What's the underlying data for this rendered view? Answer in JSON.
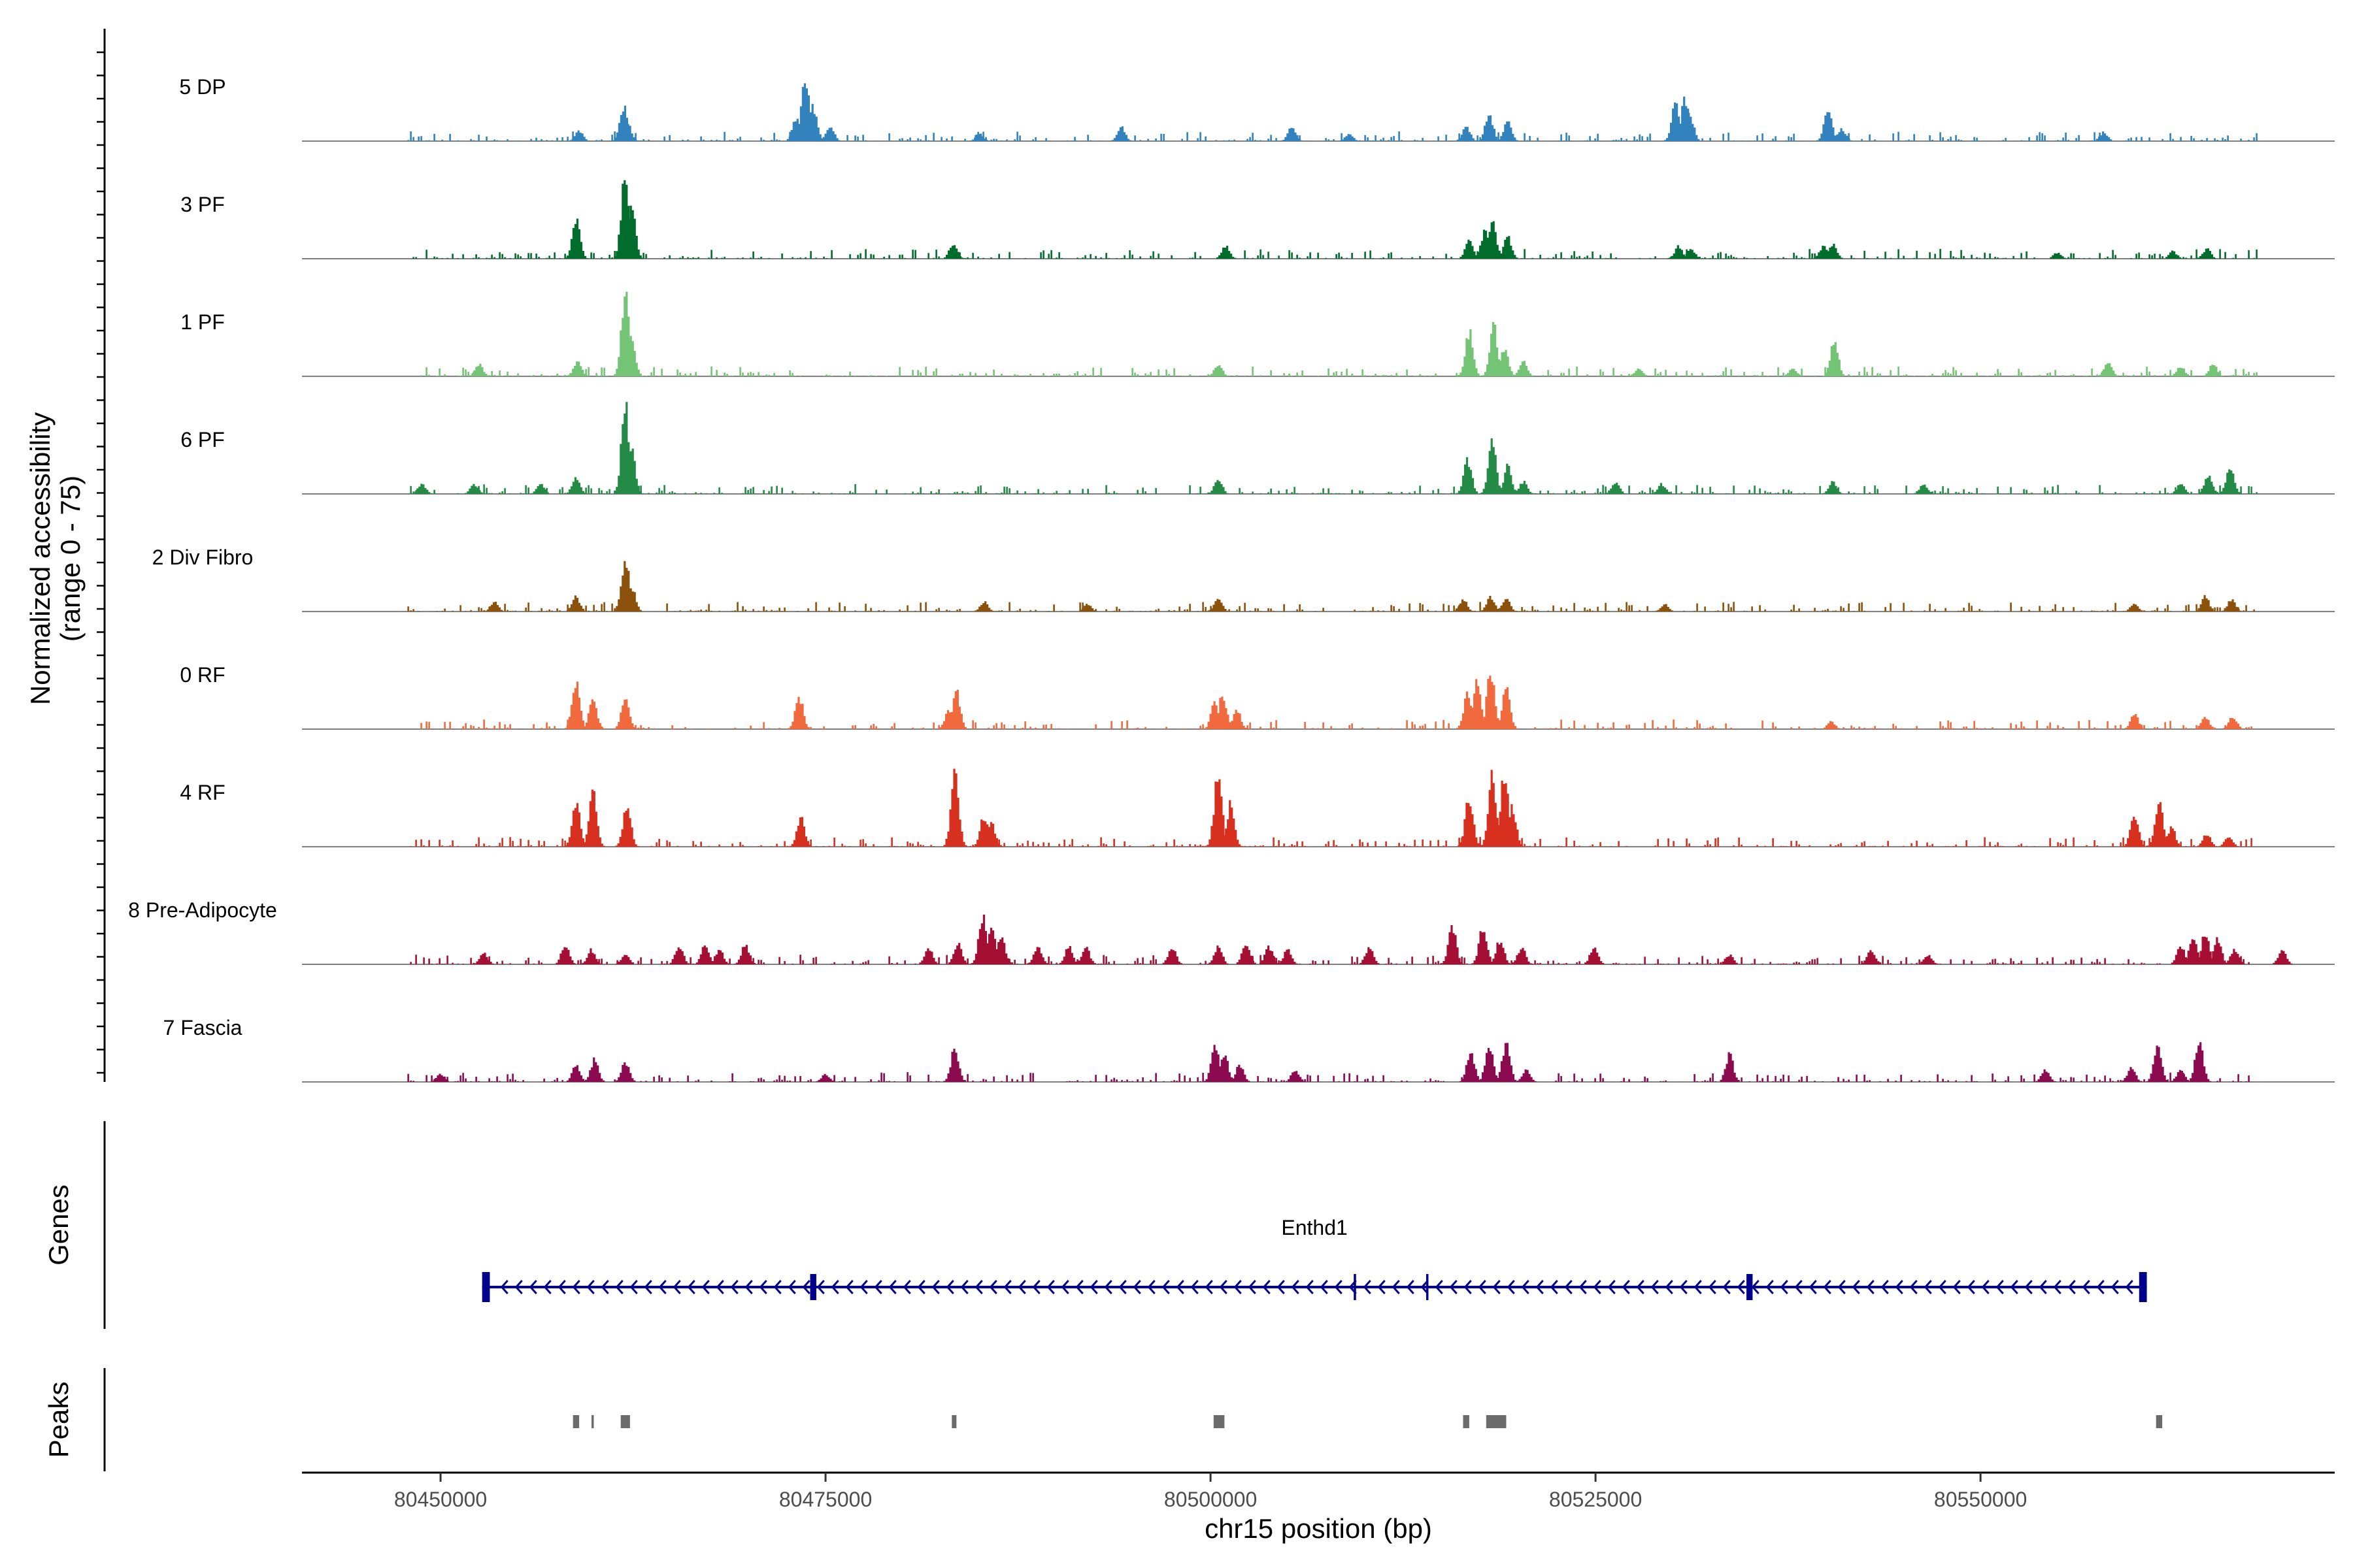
{
  "chart_data": {
    "type": "area",
    "title": "",
    "ylabel_line1": "Normalized accessibility",
    "ylabel_line2": "(range 0 - 75)",
    "ylim": [
      0,
      75
    ],
    "xlabel": "chr15 position (bp)",
    "xlim": [
      80441000,
      80573000
    ],
    "xticks": [
      80450000,
      80475000,
      80500000,
      80525000,
      80550000
    ],
    "xtick_labels": [
      "80450000",
      "80475000",
      "80500000",
      "80525000",
      "80550000"
    ],
    "region": [
      80447900,
      80568000
    ],
    "tracks": [
      {
        "name": "5 DP",
        "color": "#3182bd",
        "peaks": [
          [
            80461900,
            28
          ],
          [
            80462100,
            18
          ],
          [
            80473100,
            18
          ],
          [
            80473700,
            50
          ],
          [
            80474200,
            28
          ],
          [
            80475300,
            12
          ],
          [
            80459000,
            8
          ],
          [
            80485000,
            6
          ],
          [
            80494200,
            12
          ],
          [
            80505300,
            12
          ],
          [
            80516600,
            12
          ],
          [
            80518100,
            22
          ],
          [
            80519300,
            16
          ],
          [
            80530200,
            30
          ],
          [
            80530800,
            34
          ],
          [
            80531100,
            24
          ],
          [
            80540100,
            28
          ],
          [
            80541000,
            10
          ],
          [
            80558000,
            7
          ],
          [
            80509000,
            6
          ]
        ]
      },
      {
        "name": "3 PF",
        "color": "#006d2c",
        "peaks": [
          [
            80458800,
            32
          ],
          [
            80462000,
            70
          ],
          [
            80462400,
            42
          ],
          [
            80483300,
            12
          ],
          [
            80501000,
            10
          ],
          [
            80516800,
            14
          ],
          [
            80517800,
            22
          ],
          [
            80518300,
            32
          ],
          [
            80519300,
            18
          ],
          [
            80530400,
            10
          ],
          [
            80531200,
            8
          ],
          [
            80539800,
            10
          ],
          [
            80540400,
            12
          ],
          [
            80562500,
            6
          ],
          [
            80564700,
            8
          ],
          [
            80555000,
            5
          ]
        ]
      },
      {
        "name": "1 PF",
        "color": "#74c476",
        "peaks": [
          [
            80462000,
            72
          ],
          [
            80462400,
            30
          ],
          [
            80458900,
            12
          ],
          [
            80452500,
            10
          ],
          [
            80500500,
            10
          ],
          [
            80516800,
            36
          ],
          [
            80518400,
            40
          ],
          [
            80519100,
            22
          ],
          [
            80520300,
            12
          ],
          [
            80540500,
            30
          ],
          [
            80537800,
            6
          ],
          [
            80558300,
            12
          ],
          [
            80563000,
            8
          ],
          [
            80565100,
            10
          ],
          [
            80527800,
            6
          ]
        ]
      },
      {
        "name": "6 PF",
        "color": "#238b45",
        "peaks": [
          [
            80462000,
            72
          ],
          [
            80462400,
            36
          ],
          [
            80458800,
            14
          ],
          [
            80448800,
            8
          ],
          [
            80452200,
            8
          ],
          [
            80456500,
            8
          ],
          [
            80500500,
            12
          ],
          [
            80516700,
            28
          ],
          [
            80518300,
            42
          ],
          [
            80519300,
            22
          ],
          [
            80520300,
            10
          ],
          [
            80540400,
            10
          ],
          [
            80546300,
            8
          ],
          [
            80564800,
            16
          ],
          [
            80566200,
            22
          ],
          [
            80563000,
            8
          ],
          [
            80526300,
            10
          ],
          [
            80529300,
            8
          ]
        ]
      },
      {
        "name": "2 Div Fibro",
        "color": "#8c510a",
        "peaks": [
          [
            80462000,
            44
          ],
          [
            80462400,
            20
          ],
          [
            80458800,
            12
          ],
          [
            80453500,
            8
          ],
          [
            80485300,
            8
          ],
          [
            80492000,
            6
          ],
          [
            80500500,
            12
          ],
          [
            80516400,
            10
          ],
          [
            80518200,
            12
          ],
          [
            80519200,
            10
          ],
          [
            80564600,
            12
          ],
          [
            80566300,
            10
          ],
          [
            80529500,
            6
          ],
          [
            80560000,
            6
          ]
        ]
      },
      {
        "name": "0 RF",
        "color": "#f16a3e",
        "peaks": [
          [
            80458800,
            38
          ],
          [
            80459900,
            24
          ],
          [
            80462000,
            26
          ],
          [
            80473300,
            26
          ],
          [
            80483000,
            14
          ],
          [
            80483500,
            30
          ],
          [
            80500300,
            22
          ],
          [
            80500800,
            28
          ],
          [
            80501700,
            16
          ],
          [
            80516700,
            30
          ],
          [
            80517300,
            38
          ],
          [
            80518200,
            48
          ],
          [
            80519200,
            34
          ],
          [
            80560000,
            12
          ],
          [
            80564600,
            10
          ],
          [
            80566400,
            10
          ],
          [
            80540300,
            6
          ]
        ]
      },
      {
        "name": "4 RF",
        "color": "#d7301f",
        "peaks": [
          [
            80458800,
            36
          ],
          [
            80459900,
            44
          ],
          [
            80462100,
            34
          ],
          [
            80473400,
            24
          ],
          [
            80483400,
            60
          ],
          [
            80485300,
            26
          ],
          [
            80485800,
            18
          ],
          [
            80500500,
            60
          ],
          [
            80501300,
            34
          ],
          [
            80516800,
            42
          ],
          [
            80518300,
            58
          ],
          [
            80519100,
            62
          ],
          [
            80519600,
            32
          ],
          [
            80560000,
            28
          ],
          [
            80561600,
            38
          ],
          [
            80562400,
            16
          ],
          [
            80564700,
            10
          ],
          [
            80566100,
            8
          ]
        ]
      },
      {
        "name": "8 Pre-Adipocyte",
        "color": "#a50f33",
        "peaks": [
          [
            80452800,
            10
          ],
          [
            80458100,
            16
          ],
          [
            80459800,
            12
          ],
          [
            80462000,
            8
          ],
          [
            80465500,
            16
          ],
          [
            80467200,
            16
          ],
          [
            80468100,
            12
          ],
          [
            80469800,
            16
          ],
          [
            80481700,
            14
          ],
          [
            80483600,
            18
          ],
          [
            80485200,
            38
          ],
          [
            80485800,
            30
          ],
          [
            80486400,
            24
          ],
          [
            80488800,
            14
          ],
          [
            80490800,
            14
          ],
          [
            80491900,
            14
          ],
          [
            80497500,
            14
          ],
          [
            80500500,
            14
          ],
          [
            80502300,
            18
          ],
          [
            80503800,
            14
          ],
          [
            80505000,
            12
          ],
          [
            80510300,
            14
          ],
          [
            80515700,
            30
          ],
          [
            80517700,
            30
          ],
          [
            80518800,
            20
          ],
          [
            80520200,
            14
          ],
          [
            80524900,
            14
          ],
          [
            80533700,
            8
          ],
          [
            80542900,
            12
          ],
          [
            80546600,
            8
          ],
          [
            80563000,
            16
          ],
          [
            80563800,
            22
          ],
          [
            80564600,
            26
          ],
          [
            80565400,
            20
          ],
          [
            80566500,
            12
          ],
          [
            80569600,
            12
          ]
        ]
      },
      {
        "name": "7 Fascia",
        "color": "#8c0a4f",
        "peaks": [
          [
            80458800,
            14
          ],
          [
            80460000,
            18
          ],
          [
            80462000,
            16
          ],
          [
            80483400,
            28
          ],
          [
            80500300,
            28
          ],
          [
            80500900,
            22
          ],
          [
            80501900,
            14
          ],
          [
            80505500,
            10
          ],
          [
            80516900,
            24
          ],
          [
            80518100,
            30
          ],
          [
            80519200,
            32
          ],
          [
            80533700,
            22
          ],
          [
            80554200,
            10
          ],
          [
            80559800,
            12
          ],
          [
            80561500,
            28
          ],
          [
            80564200,
            32
          ],
          [
            80563000,
            10
          ],
          [
            80450000,
            6
          ],
          [
            80520500,
            10
          ],
          [
            80475000,
            6
          ]
        ]
      }
    ],
    "genes_label": "Genes",
    "gene": {
      "name": "Enthd1",
      "strand": "-",
      "start": 80452700,
      "end": 80560800,
      "exons": [
        [
          80452700,
          80453200
        ],
        [
          80474000,
          80474400
        ],
        [
          80509300,
          80509450
        ],
        [
          80514000,
          80514150
        ],
        [
          80534800,
          80535200
        ],
        [
          80560300,
          80560800
        ]
      ]
    },
    "peaks_label": "Peaks",
    "peak_regions": [
      [
        80458600,
        80459000
      ],
      [
        80459800,
        80459950
      ],
      [
        80461700,
        80462300
      ],
      [
        80483200,
        80483500
      ],
      [
        80500200,
        80500900
      ],
      [
        80516400,
        80516800
      ],
      [
        80517900,
        80519200
      ],
      [
        80561400,
        80561800
      ]
    ]
  }
}
